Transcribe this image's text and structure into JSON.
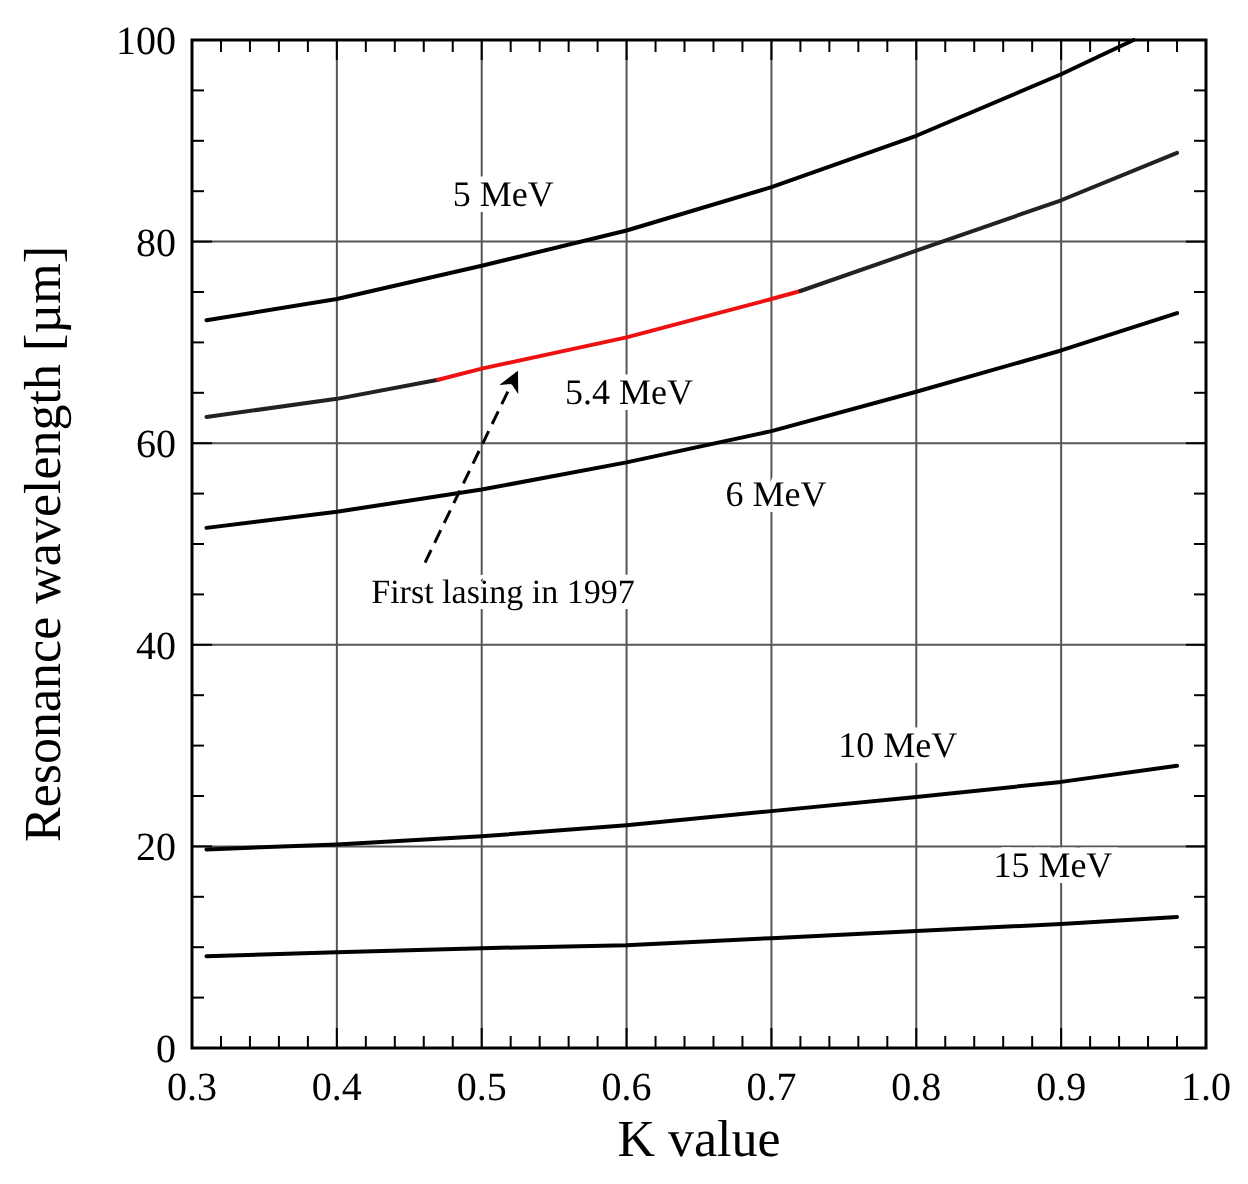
{
  "chart_data": {
    "type": "line",
    "xlabel": "K value",
    "ylabel": "Resonance wavelength [µm]",
    "xlim": [
      0.3,
      1.0
    ],
    "ylim": [
      0,
      100
    ],
    "xticks": [
      0.3,
      {
        "value": 0.32,
        "label": null
      },
      {
        "value": 0.34,
        "label": null
      },
      {
        "value": 0.36,
        "label": null
      },
      {
        "value": 0.38,
        "label": null
      },
      0.4,
      {
        "value": 0.42,
        "label": null
      },
      {
        "value": 0.44,
        "label": null
      },
      {
        "value": 0.46,
        "label": null
      },
      {
        "value": 0.48,
        "label": null
      },
      0.5,
      {
        "value": 0.52,
        "label": null
      },
      {
        "value": 0.54,
        "label": null
      },
      {
        "value": 0.56,
        "label": null
      },
      {
        "value": 0.58,
        "label": null
      },
      0.6,
      {
        "value": 0.62,
        "label": null
      },
      {
        "value": 0.64,
        "label": null
      },
      {
        "value": 0.66,
        "label": null
      },
      {
        "value": 0.68,
        "label": null
      },
      0.7,
      {
        "value": 0.72,
        "label": null
      },
      {
        "value": 0.74,
        "label": null
      },
      {
        "value": 0.76,
        "label": null
      },
      {
        "value": 0.78,
        "label": null
      },
      0.8,
      {
        "value": 0.82,
        "label": null
      },
      {
        "value": 0.84,
        "label": null
      },
      {
        "value": 0.86,
        "label": null
      },
      {
        "value": 0.88,
        "label": null
      },
      0.9,
      {
        "value": 0.92,
        "label": null
      },
      {
        "value": 0.94,
        "label": null
      },
      {
        "value": 0.96,
        "label": null
      },
      {
        "value": 0.98,
        "label": null
      },
      {
        "value": 1.0,
        "label": "1.0"
      }
    ],
    "yticks": [
      0,
      {
        "value": 5,
        "label": null
      },
      {
        "value": 10,
        "label": null
      },
      {
        "value": 15,
        "label": null
      },
      20,
      {
        "value": 25,
        "label": null
      },
      {
        "value": 30,
        "label": null
      },
      {
        "value": 35,
        "label": null
      },
      40,
      {
        "value": 45,
        "label": null
      },
      {
        "value": 50,
        "label": null
      },
      {
        "value": 55,
        "label": null
      },
      60,
      {
        "value": 65,
        "label": null
      },
      {
        "value": 70,
        "label": null
      },
      {
        "value": 75,
        "label": null
      },
      80,
      {
        "value": 85,
        "label": null
      },
      {
        "value": 90,
        "label": null
      },
      {
        "value": 95,
        "label": null
      },
      100
    ],
    "grid": true,
    "line_style": "solid",
    "marker": "none",
    "series": [
      {
        "name": "5 MeV",
        "color": "#000000",
        "x": [
          0.31,
          0.4,
          0.5,
          0.6,
          0.7,
          0.8,
          0.9,
          0.95
        ],
        "values": [
          72.2,
          74.3,
          77.6,
          81.1,
          85.4,
          90.5,
          96.6,
          100
        ]
      },
      {
        "color": "#222222",
        "x": [
          0.31,
          0.4,
          0.47
        ],
        "values": [
          62.6,
          64.4,
          66.3
        ]
      },
      {
        "name": "5.4 MeV",
        "color": "#ee1111",
        "x": [
          0.47,
          0.5,
          0.6,
          0.7,
          0.72
        ],
        "values": [
          66.3,
          67.4,
          70.5,
          74.3,
          75.1
        ]
      },
      {
        "color": "#222222",
        "x": [
          0.72,
          0.8,
          0.9,
          0.98
        ],
        "values": [
          75.1,
          79.1,
          84.1,
          88.8
        ]
      },
      {
        "name": "6 MeV",
        "color": "#000000",
        "x": [
          0.31,
          0.4,
          0.5,
          0.6,
          0.7,
          0.8,
          0.9,
          0.98
        ],
        "values": [
          51.6,
          53.2,
          55.4,
          58.1,
          61.2,
          65.1,
          69.2,
          72.9
        ]
      },
      {
        "name": "10 MeV",
        "color": "#000000",
        "x": [
          0.31,
          0.4,
          0.5,
          0.6,
          0.7,
          0.8,
          0.9,
          0.98
        ],
        "values": [
          19.7,
          20.2,
          21.0,
          22.1,
          23.5,
          24.9,
          26.4,
          28.0
        ]
      },
      {
        "name": "15 MeV",
        "color": "#000000",
        "x": [
          0.31,
          0.4,
          0.5,
          0.6,
          0.7,
          0.8,
          0.9,
          0.98
        ],
        "values": [
          9.1,
          9.5,
          9.9,
          10.2,
          10.9,
          11.6,
          12.3,
          13.0
        ]
      }
    ],
    "annotations": [
      {
        "text": "First lasing in 1997",
        "x": 0.523,
        "y": 67.6
      }
    ]
  }
}
